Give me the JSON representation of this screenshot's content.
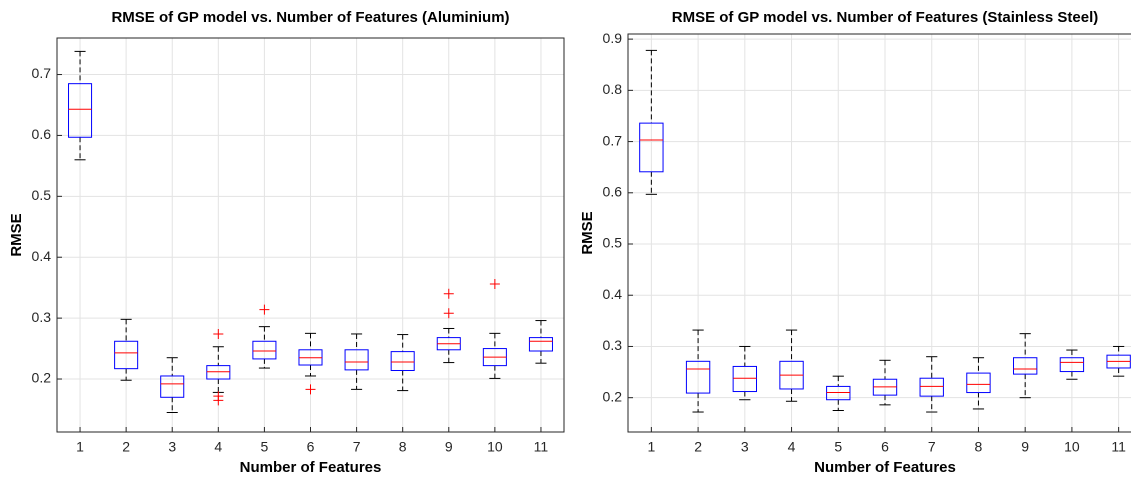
{
  "chart_data": [
    {
      "type": "box",
      "title": "RMSE of GP model vs. Number of Features (Aluminium)",
      "xlabel": "Number of Features",
      "ylabel": "RMSE",
      "categories": [
        "1",
        "2",
        "3",
        "4",
        "5",
        "6",
        "7",
        "8",
        "9",
        "10",
        "11"
      ],
      "boxes": [
        {
          "whisker_low": 0.56,
          "q1": 0.597,
          "median": 0.643,
          "q3": 0.685,
          "whisker_high": 0.738,
          "outliers": []
        },
        {
          "whisker_low": 0.198,
          "q1": 0.217,
          "median": 0.243,
          "q3": 0.262,
          "whisker_high": 0.298,
          "outliers": []
        },
        {
          "whisker_low": 0.145,
          "q1": 0.17,
          "median": 0.192,
          "q3": 0.205,
          "whisker_high": 0.235,
          "outliers": []
        },
        {
          "whisker_low": 0.178,
          "q1": 0.2,
          "median": 0.212,
          "q3": 0.222,
          "whisker_high": 0.253,
          "outliers": [
            0.274,
            0.172,
            0.165
          ]
        },
        {
          "whisker_low": 0.218,
          "q1": 0.233,
          "median": 0.246,
          "q3": 0.262,
          "whisker_high": 0.286,
          "outliers": [
            0.314
          ]
        },
        {
          "whisker_low": 0.205,
          "q1": 0.223,
          "median": 0.235,
          "q3": 0.248,
          "whisker_high": 0.275,
          "outliers": [
            0.183
          ]
        },
        {
          "whisker_low": 0.183,
          "q1": 0.215,
          "median": 0.228,
          "q3": 0.248,
          "whisker_high": 0.274,
          "outliers": []
        },
        {
          "whisker_low": 0.181,
          "q1": 0.214,
          "median": 0.228,
          "q3": 0.245,
          "whisker_high": 0.273,
          "outliers": []
        },
        {
          "whisker_low": 0.227,
          "q1": 0.248,
          "median": 0.258,
          "q3": 0.268,
          "whisker_high": 0.283,
          "outliers": [
            0.34,
            0.308
          ]
        },
        {
          "whisker_low": 0.201,
          "q1": 0.222,
          "median": 0.236,
          "q3": 0.25,
          "whisker_high": 0.275,
          "outliers": [
            0.356
          ]
        },
        {
          "whisker_low": 0.226,
          "q1": 0.246,
          "median": 0.262,
          "q3": 0.268,
          "whisker_high": 0.296,
          "outliers": []
        }
      ],
      "box_color": "#0000ff",
      "median_color": "#ff0000",
      "whisker_color": "#000000",
      "outlier_color": "#ff0000",
      "ylim": [
        0.113,
        0.76
      ],
      "yticks": [
        0.2,
        0.3,
        0.4,
        0.5,
        0.6,
        0.7
      ],
      "grid": true
    },
    {
      "type": "box",
      "title": "RMSE of GP model vs. Number of Features (Stainless Steel)",
      "xlabel": "Number of Features",
      "ylabel": "RMSE",
      "categories": [
        "1",
        "2",
        "3",
        "4",
        "5",
        "6",
        "7",
        "8",
        "9",
        "10",
        "11"
      ],
      "boxes": [
        {
          "whisker_low": 0.597,
          "q1": 0.641,
          "median": 0.703,
          "q3": 0.736,
          "whisker_high": 0.878,
          "outliers": []
        },
        {
          "whisker_low": 0.172,
          "q1": 0.209,
          "median": 0.256,
          "q3": 0.271,
          "whisker_high": 0.332,
          "outliers": []
        },
        {
          "whisker_low": 0.196,
          "q1": 0.212,
          "median": 0.238,
          "q3": 0.261,
          "whisker_high": 0.3,
          "outliers": []
        },
        {
          "whisker_low": 0.193,
          "q1": 0.217,
          "median": 0.244,
          "q3": 0.271,
          "whisker_high": 0.332,
          "outliers": []
        },
        {
          "whisker_low": 0.175,
          "q1": 0.196,
          "median": 0.21,
          "q3": 0.222,
          "whisker_high": 0.242,
          "outliers": []
        },
        {
          "whisker_low": 0.186,
          "q1": 0.205,
          "median": 0.221,
          "q3": 0.236,
          "whisker_high": 0.273,
          "outliers": []
        },
        {
          "whisker_low": 0.172,
          "q1": 0.203,
          "median": 0.222,
          "q3": 0.238,
          "whisker_high": 0.28,
          "outliers": []
        },
        {
          "whisker_low": 0.178,
          "q1": 0.21,
          "median": 0.226,
          "q3": 0.248,
          "whisker_high": 0.278,
          "outliers": []
        },
        {
          "whisker_low": 0.2,
          "q1": 0.246,
          "median": 0.256,
          "q3": 0.278,
          "whisker_high": 0.325,
          "outliers": []
        },
        {
          "whisker_low": 0.236,
          "q1": 0.251,
          "median": 0.269,
          "q3": 0.278,
          "whisker_high": 0.293,
          "outliers": []
        },
        {
          "whisker_low": 0.242,
          "q1": 0.258,
          "median": 0.271,
          "q3": 0.283,
          "whisker_high": 0.3,
          "outliers": []
        }
      ],
      "box_color": "#0000ff",
      "median_color": "#ff0000",
      "whisker_color": "#000000",
      "outlier_color": "#ff0000",
      "ylim": [
        0.133,
        0.91
      ],
      "yticks": [
        0.2,
        0.3,
        0.4,
        0.5,
        0.6,
        0.7,
        0.8,
        0.9
      ],
      "grid": true
    }
  ]
}
